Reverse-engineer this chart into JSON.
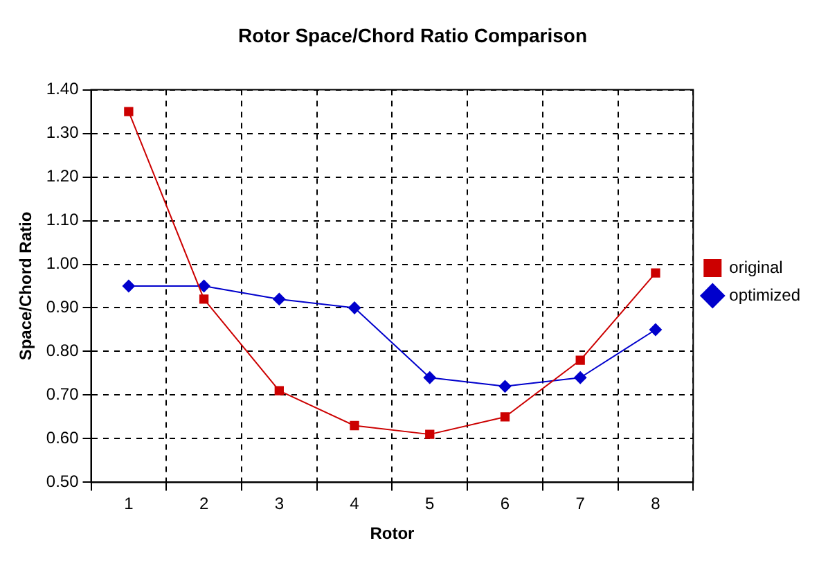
{
  "chart_data": {
    "type": "line",
    "title": "Rotor Space/Chord Ratio Comparison",
    "xlabel": "Rotor",
    "ylabel": "Space/Chord Ratio",
    "categories": [
      "1",
      "2",
      "3",
      "4",
      "5",
      "6",
      "7",
      "8"
    ],
    "series": [
      {
        "name": "original",
        "color": "#cc0000",
        "marker": "square",
        "values": [
          1.35,
          0.92,
          0.71,
          0.63,
          0.61,
          0.65,
          0.78,
          0.98
        ]
      },
      {
        "name": "optimized",
        "color": "#0000cc",
        "marker": "diamond",
        "values": [
          0.95,
          0.95,
          0.92,
          0.9,
          0.74,
          0.72,
          0.74,
          0.85
        ]
      }
    ],
    "ylim": [
      0.5,
      1.4
    ],
    "yticks": [
      {
        "value": 0.5,
        "label": "0.50"
      },
      {
        "value": 0.6,
        "label": "0.60"
      },
      {
        "value": 0.7,
        "label": "0.70"
      },
      {
        "value": 0.8,
        "label": "0.80"
      },
      {
        "value": 0.9,
        "label": "0.90"
      },
      {
        "value": 1.0,
        "label": "1.00"
      },
      {
        "value": 1.1,
        "label": "1.10"
      },
      {
        "value": 1.2,
        "label": "1.20"
      },
      {
        "value": 1.3,
        "label": "1.30"
      },
      {
        "value": 1.4,
        "label": "1.40"
      }
    ],
    "grid": true,
    "legend": "right",
    "line_style": "solid"
  }
}
